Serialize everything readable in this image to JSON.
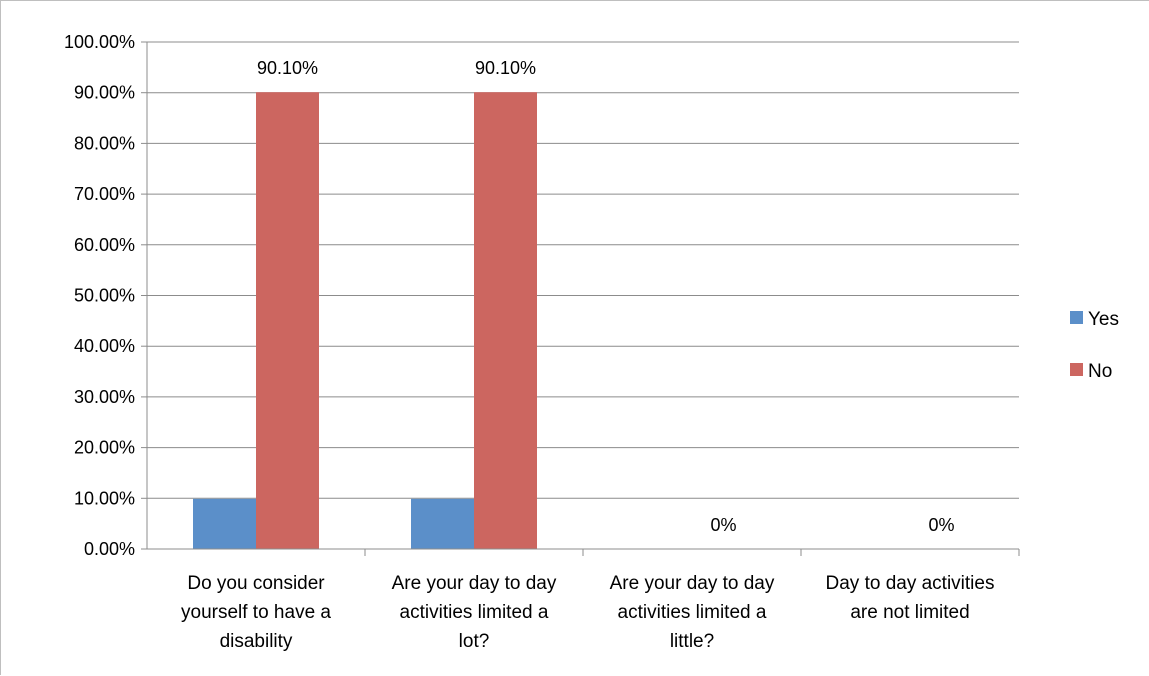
{
  "chart_data": {
    "type": "bar",
    "categories": [
      [
        "Do you consider",
        "yourself to have a",
        "disability"
      ],
      [
        "Are your day to day",
        "activities limited a",
        "lot?"
      ],
      [
        "Are your day to day",
        "activities limited a",
        "little?"
      ],
      [
        "Day to day activities",
        "are not limited"
      ]
    ],
    "series": [
      {
        "name": "Yes",
        "color": "#5B8FC9",
        "values": [
          9.9,
          9.9,
          0,
          0
        ]
      },
      {
        "name": "No",
        "color": "#CC6660",
        "values": [
          90.1,
          90.1,
          0,
          0
        ]
      }
    ],
    "data_labels": [
      "90.10%",
      "90.10%",
      "0%",
      "0%"
    ],
    "y_ticks": [
      "0.00%",
      "10.00%",
      "20.00%",
      "30.00%",
      "40.00%",
      "50.00%",
      "60.00%",
      "70.00%",
      "80.00%",
      "90.00%",
      "100.00%"
    ],
    "ylim": [
      0,
      100
    ],
    "grid": true,
    "legend_position": "right"
  }
}
